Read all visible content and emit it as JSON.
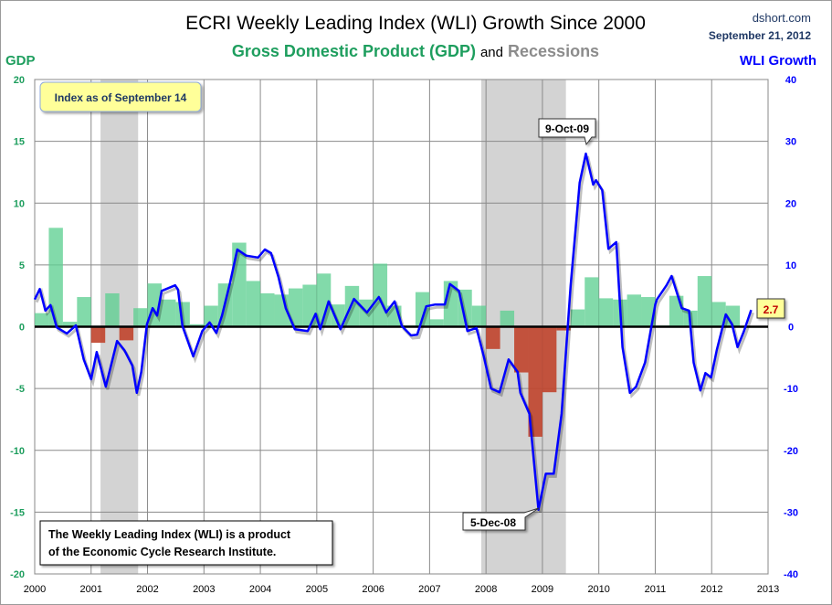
{
  "header": {
    "title": "ECRI Weekly Leading Index (WLI) Growth Since 2000",
    "subtitle_gdp": "Gross Domestic Product (GDP)",
    "subtitle_and": "and",
    "subtitle_recessions": "Recessions",
    "source": "dshort.com",
    "date": "September 21, 2012"
  },
  "chart_data": {
    "type": "bar+line",
    "title": "ECRI Weekly Leading Index (WLI) Growth Since 2000",
    "subtitle": "Gross Domestic Product (GDP) and Recessions",
    "ylabel_left": "GDP",
    "ylabel_right": "WLI Growth",
    "ylim_left": [
      -20,
      20
    ],
    "ylim_right": [
      -40,
      40
    ],
    "xlim": [
      2000,
      2013
    ],
    "grid": true,
    "colors": {
      "gdp_positive": "#5fcf92",
      "gdp_negative": "#c0442c",
      "wli": "#0000ff",
      "recession": "#d3d3d3",
      "gdp_axis": "#1e9e5e",
      "wli_axis": "#0000ff"
    },
    "x_ticks": [
      "2000",
      "2001",
      "2002",
      "2003",
      "2004",
      "2005",
      "2006",
      "2007",
      "2008",
      "2009",
      "2010",
      "2011",
      "2012",
      "2013"
    ],
    "left_ticks": [
      "20",
      "15",
      "10",
      "5",
      "0",
      "-5",
      "-10",
      "-15",
      "-20"
    ],
    "right_ticks": [
      "40",
      "30",
      "20",
      "10",
      "0",
      "-10",
      "-20",
      "-30",
      "-40"
    ],
    "recessions": [
      [
        "2001-03",
        "2001-11"
      ],
      [
        "2007-12",
        "2009-06"
      ]
    ],
    "gdp_quarterly": {
      "start": "2000Q1",
      "values": [
        1.1,
        8.0,
        0.4,
        2.4,
        -1.3,
        2.7,
        -1.1,
        1.5,
        3.5,
        2.2,
        2.0,
        0.2,
        1.7,
        3.5,
        6.8,
        3.7,
        2.7,
        2.6,
        3.1,
        3.4,
        4.3,
        1.8,
        3.3,
        2.2,
        5.1,
        1.7,
        0.1,
        2.8,
        0.6,
        3.7,
        3.0,
        1.7,
        -1.8,
        1.3,
        -3.7,
        -8.9,
        -5.3,
        -0.3,
        1.4,
        4.0,
        2.3,
        2.2,
        2.6,
        2.4,
        0.1,
        2.5,
        1.3,
        4.1,
        2.0,
        1.7
      ]
    },
    "wli_series": {
      "name": "WLI Growth",
      "points": [
        [
          2000.0,
          4.4
        ],
        [
          2000.09,
          6.1
        ],
        [
          2000.19,
          2.6
        ],
        [
          2000.28,
          3.5
        ],
        [
          2000.39,
          -0.1
        ],
        [
          2000.57,
          -1.1
        ],
        [
          2000.73,
          0.2
        ],
        [
          2000.87,
          -5.3
        ],
        [
          2001.0,
          -8.5
        ],
        [
          2001.1,
          -4.1
        ],
        [
          2001.26,
          -9.7
        ],
        [
          2001.46,
          -2.3
        ],
        [
          2001.59,
          -3.8
        ],
        [
          2001.73,
          -6.3
        ],
        [
          2001.81,
          -10.7
        ],
        [
          2001.89,
          -7.3
        ],
        [
          2001.99,
          0.4
        ],
        [
          2002.09,
          3.0
        ],
        [
          2002.17,
          1.8
        ],
        [
          2002.25,
          5.8
        ],
        [
          2002.49,
          6.7
        ],
        [
          2002.54,
          6.0
        ],
        [
          2002.62,
          0.1
        ],
        [
          2002.81,
          -4.8
        ],
        [
          2002.97,
          -0.7
        ],
        [
          2003.1,
          0.7
        ],
        [
          2003.22,
          -1.0
        ],
        [
          2003.32,
          1.8
        ],
        [
          2003.46,
          7.0
        ],
        [
          2003.59,
          12.5
        ],
        [
          2003.75,
          11.5
        ],
        [
          2003.96,
          11.2
        ],
        [
          2004.08,
          12.5
        ],
        [
          2004.19,
          11.9
        ],
        [
          2004.32,
          8.1
        ],
        [
          2004.45,
          3.0
        ],
        [
          2004.61,
          -0.4
        ],
        [
          2004.84,
          -0.7
        ],
        [
          2004.98,
          2.1
        ],
        [
          2005.06,
          -0.4
        ],
        [
          2005.21,
          4.1
        ],
        [
          2005.42,
          -0.4
        ],
        [
          2005.66,
          4.5
        ],
        [
          2005.89,
          2.3
        ],
        [
          2006.1,
          4.8
        ],
        [
          2006.23,
          2.3
        ],
        [
          2006.38,
          4.1
        ],
        [
          2006.51,
          0.1
        ],
        [
          2006.67,
          -1.4
        ],
        [
          2006.78,
          -1.3
        ],
        [
          2006.94,
          3.3
        ],
        [
          2007.1,
          3.6
        ],
        [
          2007.27,
          3.6
        ],
        [
          2007.36,
          6.9
        ],
        [
          2007.52,
          5.8
        ],
        [
          2007.67,
          -0.7
        ],
        [
          2007.83,
          -0.2
        ],
        [
          2007.96,
          -4.8
        ],
        [
          2008.09,
          -10.0
        ],
        [
          2008.24,
          -10.6
        ],
        [
          2008.4,
          -5.3
        ],
        [
          2008.56,
          -7.3
        ],
        [
          2008.61,
          -10.7
        ],
        [
          2008.77,
          -14.1
        ],
        [
          2008.93,
          -29.6
        ],
        [
          2009.06,
          -23.8
        ],
        [
          2009.2,
          -23.8
        ],
        [
          2009.34,
          -14.1
        ],
        [
          2009.5,
          6.6
        ],
        [
          2009.66,
          23.3
        ],
        [
          2009.77,
          28.0
        ],
        [
          2009.9,
          23.0
        ],
        [
          2009.95,
          23.7
        ],
        [
          2010.06,
          22.1
        ],
        [
          2010.17,
          12.6
        ],
        [
          2010.31,
          13.7
        ],
        [
          2010.42,
          -3.3
        ],
        [
          2010.55,
          -10.7
        ],
        [
          2010.66,
          -9.7
        ],
        [
          2010.82,
          -5.8
        ],
        [
          2011.0,
          3.6
        ],
        [
          2011.03,
          4.4
        ],
        [
          2011.2,
          6.7
        ],
        [
          2011.29,
          8.2
        ],
        [
          2011.47,
          3.0
        ],
        [
          2011.6,
          2.6
        ],
        [
          2011.68,
          -5.8
        ],
        [
          2011.8,
          -10.3
        ],
        [
          2011.89,
          -7.5
        ],
        [
          2011.99,
          -8.2
        ],
        [
          2012.09,
          -3.8
        ],
        [
          2012.25,
          2.0
        ],
        [
          2012.36,
          0.4
        ],
        [
          2012.46,
          -3.3
        ],
        [
          2012.57,
          -0.8
        ],
        [
          2012.7,
          2.7
        ]
      ]
    },
    "annotations": {
      "peak_label": "9-Oct-09",
      "trough_label": "5-Dec-08",
      "last_value_label": "2.7",
      "index_note": "Index as of September 14",
      "footer_line1": "The Weekly Leading Index (WLI) is a product",
      "footer_line2": "of the Economic Cycle Research Institute."
    }
  }
}
